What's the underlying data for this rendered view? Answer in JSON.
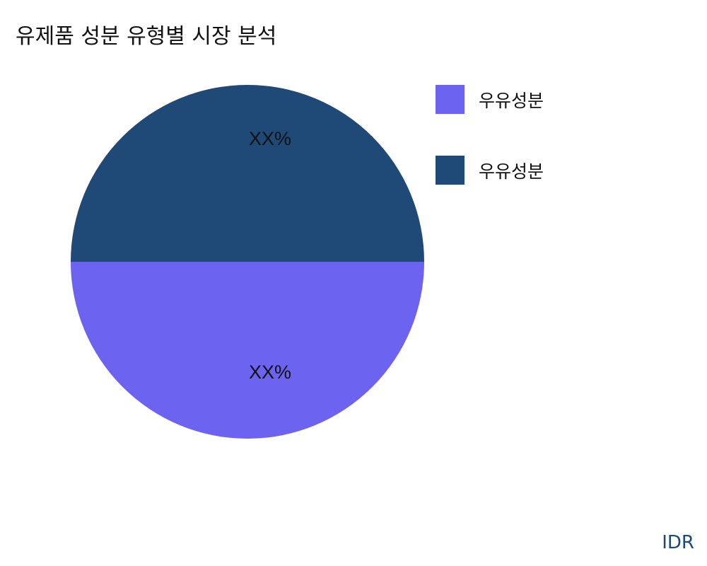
{
  "chart_data": {
    "type": "pie",
    "title": "유제품 성분 유형별 시장 분석",
    "slices": [
      {
        "label": "우유성분",
        "value": 50,
        "data_label": "XX%",
        "color": "#6c63f0"
      },
      {
        "label": "우유성분",
        "value": 50,
        "data_label": "XX%",
        "color": "#1f4a78"
      }
    ],
    "legend_position": "right"
  },
  "footer": {
    "brand": "IDR",
    "color": "#1f4a78"
  }
}
